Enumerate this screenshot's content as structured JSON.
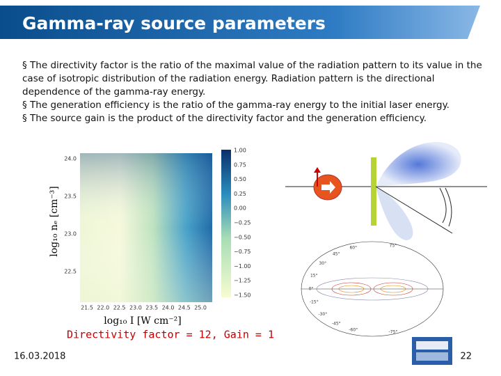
{
  "header": {
    "title": "Gamma-ray source parameters"
  },
  "bullets": [
    "§ The directivity factor is the ratio of the maximal value of the radiation pattern to its value in the case of isotropic distribution of the radiation energy. Radiation pattern is the directional dependence of the  gamma-ray energy.",
    "§ The generation efficiency is the  ratio of the gamma-ray energy to the initial laser energy.",
    "§ The source gain is the product of the directivity factor and the generation efficiency."
  ],
  "heatmap": {
    "x_label": "log₁₀ I [W cm⁻²]",
    "y_label": "log₁₀ nₑ [cm⁻³]",
    "x_ticks": [
      "21.5",
      "22.0",
      "22.5",
      "23.0",
      "23.5",
      "24.0",
      "24.5",
      "25.0"
    ],
    "y_ticks": [
      "24.0",
      "23.5",
      "23.0",
      "22.5"
    ],
    "colorbar_ticks": [
      "1.00",
      "0.75",
      "0.50",
      "0.25",
      "0.00",
      "−0.25",
      "−0.50",
      "−0.75",
      "−1.00",
      "−1.25",
      "−1.50"
    ]
  },
  "polar_labels": [
    "75°",
    "60°",
    "45°",
    "30°",
    "15°",
    "0°",
    "-15°",
    "-30°",
    "-45°",
    "-60°",
    "-75°"
  ],
  "caption": "Directivity factor = 12, Gain = 1",
  "footer": {
    "date": "16.03.2018",
    "page": "22"
  }
}
